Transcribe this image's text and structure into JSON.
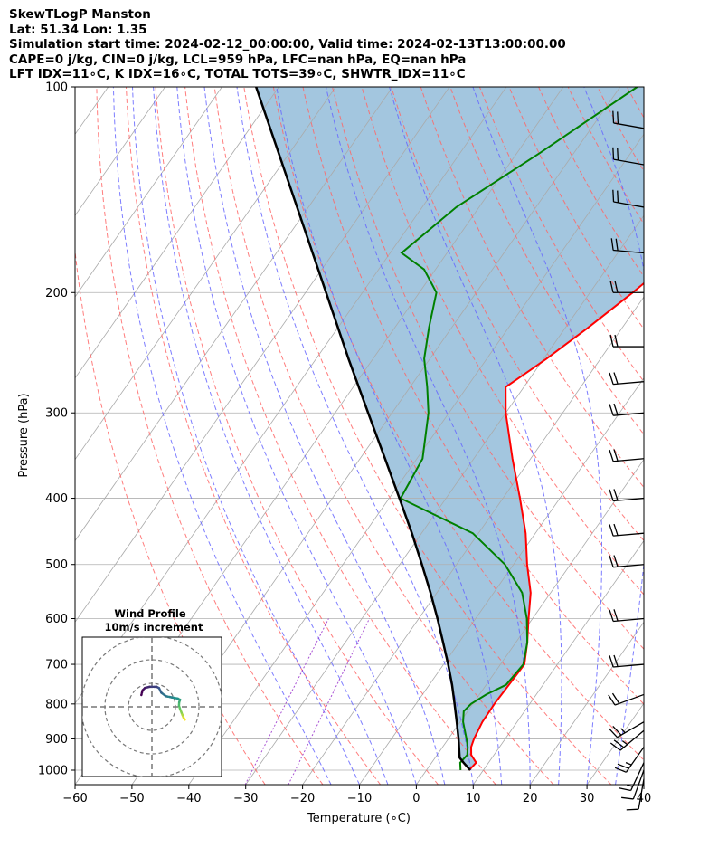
{
  "header": {
    "line1": "SkewTLogP Manston",
    "line2": "Lat: 51.34   Lon: 1.35",
    "line3": "Simulation start time: 2024-02-12_00:00:00, Valid time: 2024-02-13T13:00:00.00",
    "line4": "CAPE=0 j/kg, CIN=0 j/kg, LCL=959 hPa, LFC=nan hPa, EQ=nan hPa",
    "line5": "LFT IDX=11∘C, K IDX=16∘C, TOTAL TOTS=39∘C, SHWTR_IDX=11∘C"
  },
  "chart_data": {
    "type": "line",
    "chart_kind": "skew-t log-p diagram",
    "xlabel": "Temperature (∘C)",
    "ylabel": "Pressure (hPa)",
    "xlim": [
      -60,
      40
    ],
    "ylim": [
      1050,
      100
    ],
    "y_scale": "log",
    "x_ticks": [
      "−60",
      "−50",
      "−40",
      "−30",
      "−20",
      "−10",
      "0",
      "10",
      "20",
      "30",
      "40"
    ],
    "y_ticks": [
      "100",
      "200",
      "300",
      "400",
      "500",
      "600",
      "700",
      "800",
      "900",
      "1000"
    ],
    "grid": true,
    "skew_degrees": 35,
    "colors": {
      "temperature": "#ff0000",
      "dewpoint": "#008000",
      "parcel": "#000000",
      "shade": "#a3c6df",
      "dry_adiabats": "#ff6666",
      "moist_adiabats": "#6666ff",
      "mixing_ratio": "#9933cc",
      "isotherms": "#aaaaaa"
    },
    "series": [
      {
        "key": "temperature",
        "pressure": [
          1000,
          975,
          950,
          925,
          900,
          850,
          800,
          750,
          700,
          650,
          600,
          550,
          500,
          450,
          400,
          350,
          300,
          275,
          260,
          250,
          225,
          200,
          175,
          150,
          125,
          100
        ],
        "temperature": [
          7.5,
          7.8,
          6.0,
          5.0,
          4.5,
          3.9,
          3.8,
          4.0,
          4.2,
          2.0,
          -0.7,
          -3.5,
          -7.6,
          -11.7,
          -17.0,
          -23.2,
          -30.0,
          -33.2,
          -31.0,
          -29.5,
          -26.0,
          -22.5,
          -19.0,
          -14.5,
          -9.8,
          -6.0
        ]
      },
      {
        "key": "dewpoint",
        "pressure": [
          1000,
          975,
          950,
          925,
          900,
          850,
          820,
          800,
          775,
          750,
          700,
          650,
          600,
          550,
          500,
          450,
          400,
          350,
          300,
          275,
          250,
          225,
          200,
          185,
          175,
          150,
          125,
          100
        ],
        "dewpoint": [
          6.0,
          5.0,
          5.3,
          4.4,
          3.2,
          0.5,
          -0.7,
          -0.3,
          1.2,
          3.5,
          4.0,
          2.0,
          -1.0,
          -5.0,
          -11.5,
          -21.0,
          -38.0,
          -39.0,
          -43.6,
          -47.0,
          -51.0,
          -54.0,
          -57.0,
          -62.0,
          -68.0,
          -64.0,
          -56.0,
          -47.0
        ]
      },
      {
        "key": "parcel",
        "pressure": [
          1000,
          975,
          959,
          900,
          850,
          800,
          750,
          700,
          650,
          600,
          550,
          500,
          450,
          400,
          350,
          300,
          250,
          200,
          150,
          100
        ],
        "temperature": [
          7.7,
          5.6,
          4.3,
          1.8,
          -0.6,
          -3.2,
          -6.0,
          -9.2,
          -12.8,
          -16.7,
          -21.1,
          -26.1,
          -31.7,
          -38.2,
          -45.6,
          -54.2,
          -64.3,
          -76.4,
          -92.0,
          -114.0
        ]
      }
    ],
    "hodograph": {
      "title": "Wind Profile",
      "subtitle": "10m/s increment",
      "points_uv": [
        [
          14.0,
          -5.5
        ],
        [
          13.4,
          -4.5
        ],
        [
          13.0,
          -3.5
        ],
        [
          12.6,
          -2.5
        ],
        [
          12.0,
          -1.0
        ],
        [
          11.5,
          0.5
        ],
        [
          11.6,
          2.0
        ],
        [
          12.0,
          3.0
        ],
        [
          11.0,
          3.5
        ],
        [
          8.5,
          4.0
        ],
        [
          6.0,
          4.5
        ],
        [
          4.0,
          6.0
        ],
        [
          3.0,
          8.0
        ],
        [
          2.0,
          8.5
        ],
        [
          -1.0,
          8.5
        ],
        [
          -3.0,
          8.0
        ],
        [
          -4.0,
          7.0
        ],
        [
          -4.5,
          5.0
        ]
      ]
    },
    "wind_barbs": [
      {
        "p": 1030,
        "speed_kt": 10,
        "dir": 190
      },
      {
        "p": 1000,
        "speed_kt": 12,
        "dir": 200
      },
      {
        "p": 975,
        "speed_kt": 18,
        "dir": 205
      },
      {
        "p": 925,
        "speed_kt": 25,
        "dir": 215
      },
      {
        "p": 875,
        "speed_kt": 25,
        "dir": 230
      },
      {
        "p": 850,
        "speed_kt": 25,
        "dir": 240
      },
      {
        "p": 775,
        "speed_kt": 20,
        "dir": 250
      },
      {
        "p": 700,
        "speed_kt": 20,
        "dir": 265
      },
      {
        "p": 600,
        "speed_kt": 20,
        "dir": 265
      },
      {
        "p": 500,
        "speed_kt": 20,
        "dir": 265
      },
      {
        "p": 450,
        "speed_kt": 20,
        "dir": 265
      },
      {
        "p": 400,
        "speed_kt": 20,
        "dir": 265
      },
      {
        "p": 350,
        "speed_kt": 20,
        "dir": 265
      },
      {
        "p": 300,
        "speed_kt": 20,
        "dir": 265
      },
      {
        "p": 270,
        "speed_kt": 20,
        "dir": 265
      },
      {
        "p": 240,
        "speed_kt": 20,
        "dir": 270
      },
      {
        "p": 200,
        "speed_kt": 20,
        "dir": 270
      },
      {
        "p": 175,
        "speed_kt": 20,
        "dir": 275
      },
      {
        "p": 150,
        "speed_kt": 20,
        "dir": 280
      },
      {
        "p": 130,
        "speed_kt": 20,
        "dir": 280
      },
      {
        "p": 115,
        "speed_kt": 20,
        "dir": 280
      }
    ]
  }
}
